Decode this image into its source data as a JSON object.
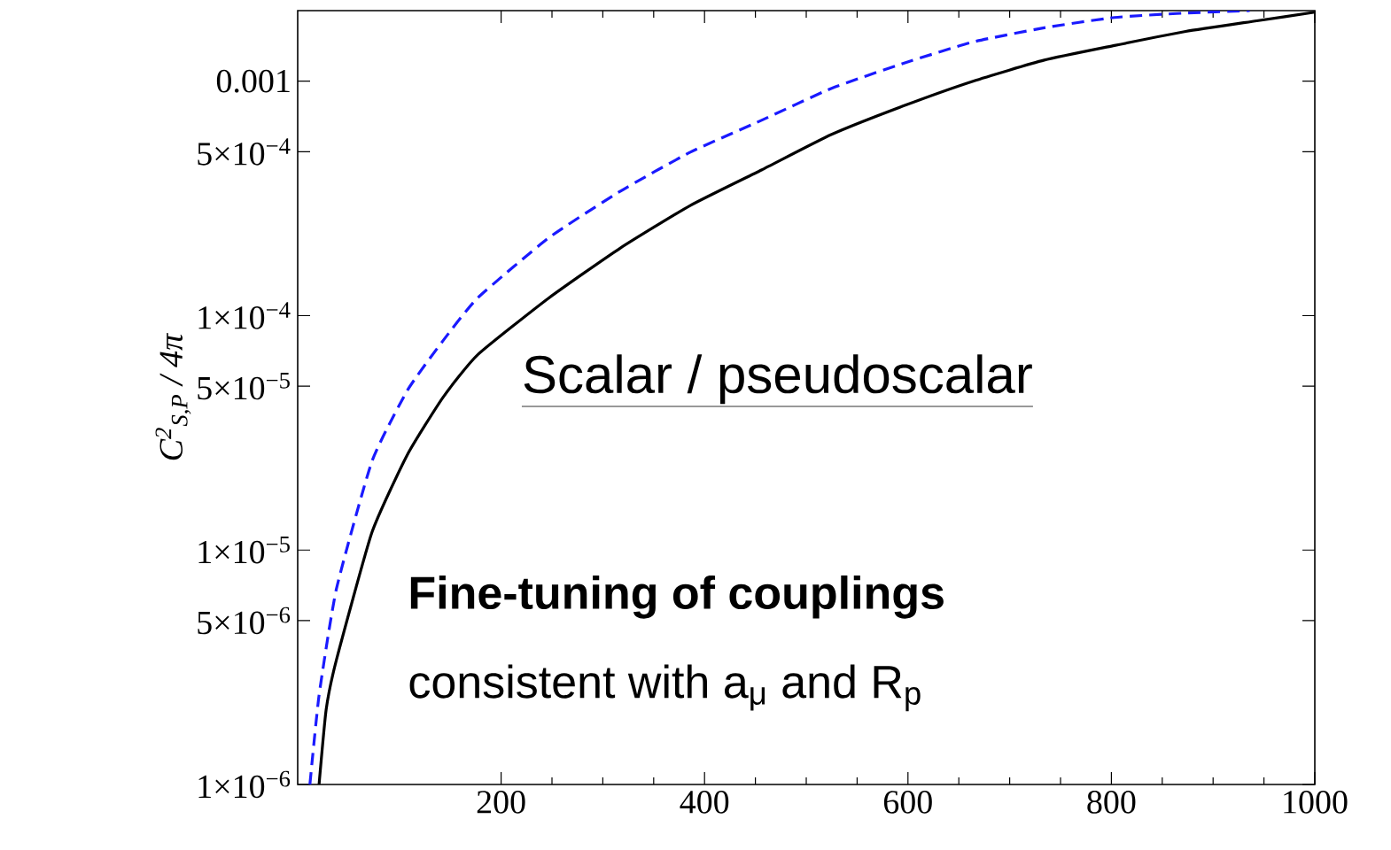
{
  "chart_data": {
    "type": "line",
    "log": "y",
    "ylabel": "C$^{2}$$_{S,P}$ / 4π",
    "xlim": [
      0,
      1000
    ],
    "xticks": [
      200,
      400,
      600,
      800,
      1000
    ],
    "ylim": [
      1e-06,
      0.002
    ],
    "yticks": [
      {
        "value": 1e-06,
        "label": "1×10$^{−6}$"
      },
      {
        "value": 5e-06,
        "label": "5×10$^{−6}$"
      },
      {
        "value": 1e-05,
        "label": "1×10$^{−5}$"
      },
      {
        "value": 5e-05,
        "label": "5×10$^{−5}$"
      },
      {
        "value": 0.0001,
        "label": "1×10$^{−4}$"
      },
      {
        "value": 0.0005,
        "label": "5×10$^{−4}$"
      },
      0.001
    ],
    "series": [
      {
        "color": "#000000",
        "line_style": "solid",
        "x": [
          21,
          28,
          38,
          73,
          108,
          143,
          177,
          247,
          317,
          386,
          456,
          525,
          595,
          664,
          734,
          803,
          873,
          943,
          1000
        ],
        "values": [
          1e-06,
          2.09e-06,
          3.39e-06,
          1.19e-05,
          2.56e-05,
          4.49e-05,
          6.81e-05,
          0.000119,
          0.000194,
          0.000295,
          0.000418,
          0.000593,
          0.000783,
          0.001,
          0.00123,
          0.00142,
          0.00163,
          0.00181,
          0.00197
        ]
      },
      {
        "color": "#1a1aff",
        "line_style": "dashed",
        "x": [
          12,
          21,
          38,
          73,
          108,
          143,
          177,
          247,
          317,
          386,
          456,
          525,
          595,
          664,
          734,
          803,
          870,
          936
        ],
        "values": [
          1e-06,
          2.4e-06,
          6.81e-06,
          2.39e-05,
          4.81e-05,
          7.83e-05,
          0.000119,
          0.000215,
          0.000339,
          0.000498,
          0.000681,
          0.000933,
          0.00119,
          0.00147,
          0.00169,
          0.00187,
          0.00195,
          0.002
        ]
      }
    ],
    "annotations": [
      "Scalar / pseudoscalar",
      "**Fine-tuning of couplings**",
      "consistent with a$_{μ}$ and R$_{p}$"
    ]
  }
}
